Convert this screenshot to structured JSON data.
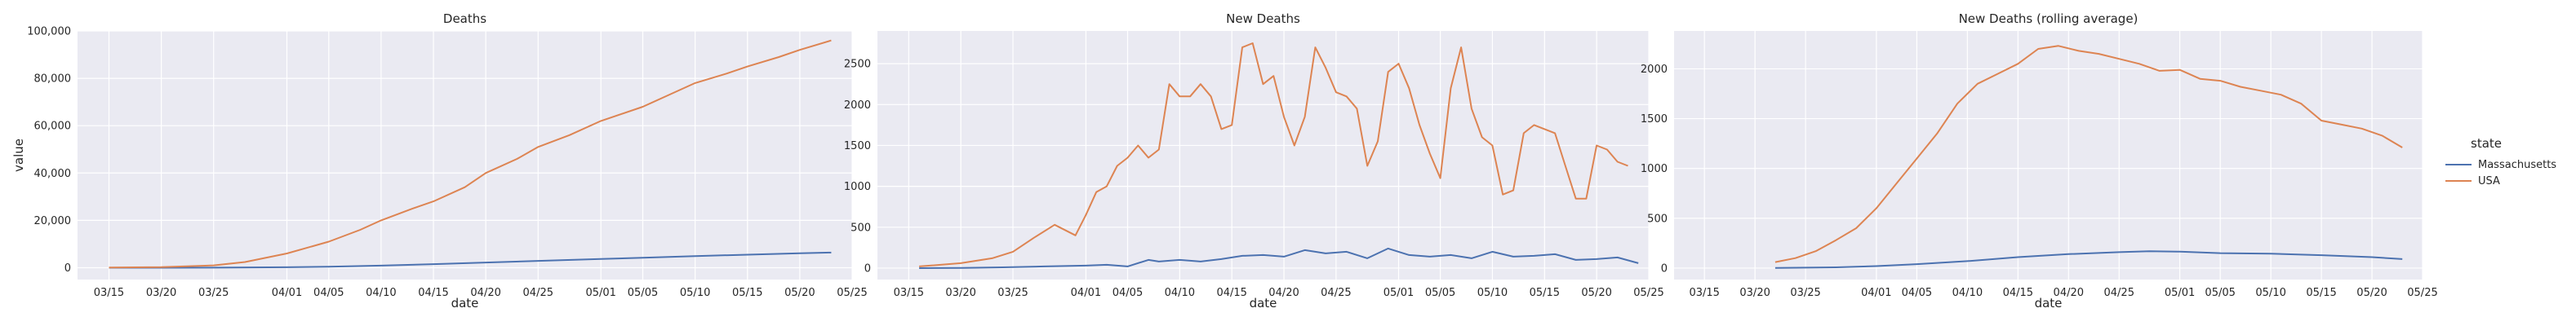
{
  "figure": {
    "legend_title": "state"
  },
  "colors": {
    "Massachusetts": "#4c72b0",
    "USA": "#dd8452",
    "panel_bg": "#eaeaf2",
    "grid": "#ffffff"
  },
  "chart_data": [
    {
      "type": "line",
      "title": "Deaths",
      "xlabel": "date",
      "ylabel": "value",
      "xlim": [
        "2020-03-12",
        "2020-05-25"
      ],
      "ylim": [
        -5000,
        100000
      ],
      "xticks": [
        "03/15",
        "03/20",
        "03/25",
        "04/01",
        "04/05",
        "04/10",
        "04/15",
        "04/20",
        "04/25",
        "05/01",
        "05/05",
        "05/10",
        "05/15",
        "05/20",
        "05/25"
      ],
      "yticks": [
        0,
        20000,
        40000,
        60000,
        80000,
        100000
      ],
      "ytick_labels": [
        "0",
        "20,000",
        "40,000",
        "60,000",
        "80,000",
        "100,000"
      ],
      "series": [
        {
          "name": "Massachusetts",
          "x": [
            "2020-03-15",
            "2020-03-20",
            "2020-03-25",
            "2020-04-01",
            "2020-04-05",
            "2020-04-10",
            "2020-04-15",
            "2020-04-20",
            "2020-04-25",
            "2020-05-01",
            "2020-05-05",
            "2020-05-10",
            "2020-05-15",
            "2020-05-20",
            "2020-05-23"
          ],
          "values": [
            0,
            3,
            30,
            200,
            400,
            900,
            1500,
            2200,
            2900,
            3700,
            4200,
            4900,
            5500,
            6100,
            6400
          ]
        },
        {
          "name": "USA",
          "x": [
            "2020-03-15",
            "2020-03-20",
            "2020-03-25",
            "2020-03-28",
            "2020-04-01",
            "2020-04-05",
            "2020-04-08",
            "2020-04-10",
            "2020-04-13",
            "2020-04-15",
            "2020-04-18",
            "2020-04-20",
            "2020-04-23",
            "2020-04-25",
            "2020-04-28",
            "2020-05-01",
            "2020-05-05",
            "2020-05-08",
            "2020-05-10",
            "2020-05-13",
            "2020-05-15",
            "2020-05-18",
            "2020-05-20",
            "2020-05-23"
          ],
          "values": [
            60,
            250,
            1000,
            2400,
            6000,
            11000,
            16000,
            20000,
            25000,
            28000,
            34000,
            40000,
            46000,
            51000,
            56000,
            62000,
            68000,
            74000,
            78000,
            82000,
            85000,
            89000,
            92000,
            96000
          ]
        }
      ]
    },
    {
      "type": "line",
      "title": "New Deaths",
      "xlabel": "date",
      "ylabel": "",
      "xlim": [
        "2020-03-12",
        "2020-05-25"
      ],
      "ylim": [
        -140,
        2900
      ],
      "xticks": [
        "03/15",
        "03/20",
        "03/25",
        "04/01",
        "04/05",
        "04/10",
        "04/15",
        "04/20",
        "04/25",
        "05/01",
        "05/05",
        "05/10",
        "05/15",
        "05/20",
        "05/25"
      ],
      "yticks": [
        0,
        500,
        1000,
        1500,
        2000,
        2500
      ],
      "ytick_labels": [
        "0",
        "500",
        "1000",
        "1500",
        "2000",
        "2500"
      ],
      "series": [
        {
          "name": "Massachusetts",
          "x": [
            "2020-03-16",
            "2020-03-20",
            "2020-03-24",
            "2020-03-28",
            "2020-04-01",
            "2020-04-03",
            "2020-04-05",
            "2020-04-07",
            "2020-04-08",
            "2020-04-10",
            "2020-04-12",
            "2020-04-14",
            "2020-04-16",
            "2020-04-18",
            "2020-04-20",
            "2020-04-22",
            "2020-04-24",
            "2020-04-26",
            "2020-04-28",
            "2020-04-30",
            "2020-05-02",
            "2020-05-04",
            "2020-05-06",
            "2020-05-08",
            "2020-05-10",
            "2020-05-12",
            "2020-05-14",
            "2020-05-16",
            "2020-05-18",
            "2020-05-20",
            "2020-05-22",
            "2020-05-24"
          ],
          "values": [
            0,
            2,
            10,
            20,
            30,
            40,
            20,
            100,
            80,
            100,
            80,
            110,
            150,
            160,
            140,
            220,
            180,
            200,
            120,
            240,
            160,
            140,
            160,
            120,
            200,
            140,
            150,
            170,
            100,
            110,
            130,
            60
          ]
        },
        {
          "name": "USA",
          "x": [
            "2020-03-16",
            "2020-03-20",
            "2020-03-23",
            "2020-03-25",
            "2020-03-27",
            "2020-03-29",
            "2020-03-31",
            "2020-04-01",
            "2020-04-02",
            "2020-04-03",
            "2020-04-04",
            "2020-04-05",
            "2020-04-06",
            "2020-04-07",
            "2020-04-08",
            "2020-04-09",
            "2020-04-10",
            "2020-04-11",
            "2020-04-12",
            "2020-04-13",
            "2020-04-14",
            "2020-04-15",
            "2020-04-16",
            "2020-04-17",
            "2020-04-18",
            "2020-04-19",
            "2020-04-20",
            "2020-04-21",
            "2020-04-22",
            "2020-04-23",
            "2020-04-24",
            "2020-04-25",
            "2020-04-26",
            "2020-04-27",
            "2020-04-28",
            "2020-04-29",
            "2020-04-30",
            "2020-05-01",
            "2020-05-02",
            "2020-05-03",
            "2020-05-04",
            "2020-05-05",
            "2020-05-06",
            "2020-05-07",
            "2020-05-08",
            "2020-05-09",
            "2020-05-10",
            "2020-05-11",
            "2020-05-12",
            "2020-05-13",
            "2020-05-14",
            "2020-05-15",
            "2020-05-16",
            "2020-05-17",
            "2020-05-18",
            "2020-05-19",
            "2020-05-20",
            "2020-05-21",
            "2020-05-22",
            "2020-05-23"
          ],
          "values": [
            20,
            60,
            120,
            200,
            370,
            530,
            400,
            650,
            930,
            1000,
            1250,
            1350,
            1500,
            1350,
            1450,
            2250,
            2100,
            2100,
            2250,
            2100,
            1700,
            1750,
            2700,
            2750,
            2250,
            2350,
            1850,
            1500,
            1850,
            2700,
            2450,
            2150,
            2100,
            1950,
            1250,
            1550,
            2400,
            2500,
            2200,
            1750,
            1400,
            1100,
            2200,
            2700,
            1950,
            1600,
            1500,
            900,
            950,
            1650,
            1750,
            1700,
            1650,
            1250,
            850,
            850,
            1500,
            1450,
            1300,
            1250
          ]
        }
      ]
    },
    {
      "type": "line",
      "title": "New Deaths (rolling average)",
      "xlabel": "date",
      "ylabel": "",
      "xlim": [
        "2020-03-12",
        "2020-05-25"
      ],
      "ylim": [
        -115,
        2380
      ],
      "xticks": [
        "03/15",
        "03/20",
        "03/25",
        "04/01",
        "04/05",
        "04/10",
        "04/15",
        "04/20",
        "04/25",
        "05/01",
        "05/05",
        "05/10",
        "05/15",
        "05/20",
        "05/25"
      ],
      "yticks": [
        0,
        500,
        1000,
        1500,
        2000
      ],
      "ytick_labels": [
        "0",
        "500",
        "1000",
        "1500",
        "2000"
      ],
      "series": [
        {
          "name": "Massachusetts",
          "x": [
            "2020-03-22",
            "2020-03-28",
            "2020-04-01",
            "2020-04-05",
            "2020-04-10",
            "2020-04-15",
            "2020-04-20",
            "2020-04-25",
            "2020-04-28",
            "2020-05-01",
            "2020-05-05",
            "2020-05-10",
            "2020-05-15",
            "2020-05-20",
            "2020-05-23"
          ],
          "values": [
            2,
            8,
            20,
            40,
            70,
            110,
            140,
            160,
            170,
            165,
            150,
            145,
            130,
            110,
            90
          ]
        },
        {
          "name": "USA",
          "x": [
            "2020-03-22",
            "2020-03-24",
            "2020-03-26",
            "2020-03-28",
            "2020-03-30",
            "2020-04-01",
            "2020-04-03",
            "2020-04-05",
            "2020-04-07",
            "2020-04-09",
            "2020-04-11",
            "2020-04-13",
            "2020-04-15",
            "2020-04-17",
            "2020-04-19",
            "2020-04-21",
            "2020-04-23",
            "2020-04-25",
            "2020-04-27",
            "2020-04-29",
            "2020-05-01",
            "2020-05-03",
            "2020-05-05",
            "2020-05-07",
            "2020-05-09",
            "2020-05-11",
            "2020-05-13",
            "2020-05-15",
            "2020-05-17",
            "2020-05-19",
            "2020-05-21",
            "2020-05-23"
          ],
          "values": [
            60,
            100,
            170,
            280,
            400,
            600,
            850,
            1100,
            1350,
            1650,
            1850,
            1950,
            2050,
            2200,
            2230,
            2180,
            2150,
            2100,
            2050,
            1980,
            1990,
            1900,
            1880,
            1820,
            1780,
            1740,
            1650,
            1480,
            1440,
            1400,
            1330,
            1210
          ]
        }
      ]
    }
  ]
}
